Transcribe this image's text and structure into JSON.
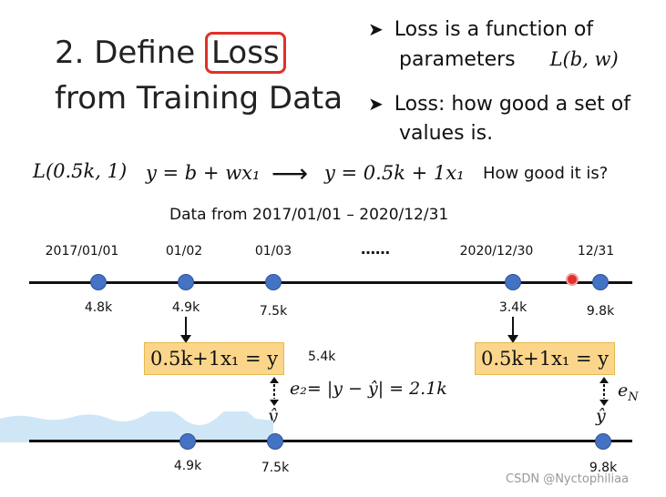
{
  "title": {
    "line1_prefix": "2. Define ",
    "line1_boxed": "Loss",
    "line2": "from Training Data"
  },
  "bullets": [
    {
      "text": "Loss is a function of parameters",
      "line1": "Loss is a function of",
      "line2": "parameters",
      "formula": "L(b, w)"
    },
    {
      "text": "Loss: how good a set of values is.",
      "line1": "Loss: how good a set of",
      "line2": "values is."
    }
  ],
  "equation_row": {
    "loss_example": "L(0.5k, 1)",
    "model_general": "y = b + wx₁",
    "arrow": "⟶",
    "model_specific": "y = 0.5k + 1x₁",
    "question": "How good it is?"
  },
  "data_range": "Data from 2017/01/01 – 2020/12/31",
  "top_timeline": {
    "dates": [
      "2017/01/01",
      "01/02",
      "01/03",
      "……",
      "2020/12/30",
      "12/31"
    ],
    "values": [
      "4.8k",
      "4.9k",
      "7.5k",
      "3.4k",
      "9.8k"
    ]
  },
  "prediction_left": {
    "model": "0.5k+1x₁ = y",
    "output": "5.4k"
  },
  "prediction_right": {
    "model": "0.5k+1x₁ = y"
  },
  "error_left": {
    "label": "e₂= |y − ŷ| = 2.1k",
    "yhat": "ŷ"
  },
  "error_right": {
    "label": "e",
    "subscript": "N",
    "yhat": "ŷ"
  },
  "bottom_timeline": {
    "values": [
      "4.9k",
      "7.5k",
      "9.8k"
    ]
  },
  "watermark": "CSDN @Nyctophiliaa"
}
